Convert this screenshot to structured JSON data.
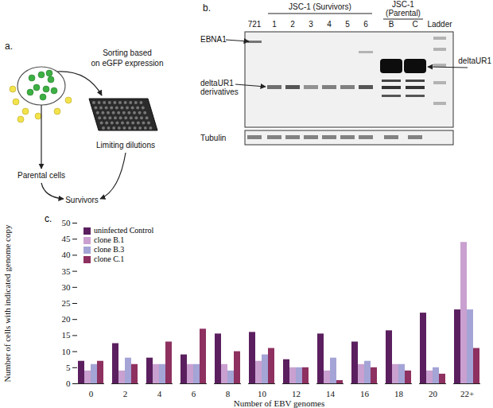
{
  "panel_a": {
    "label": "a.",
    "sorting": [
      "Sorting based",
      "on eGFP expression"
    ],
    "plate": "Limiting dilutions",
    "parental": "Parental cells",
    "survivors": "Survivors"
  },
  "panel_b": {
    "label": "b.",
    "lanes": {
      "reference": "721",
      "survivors_group": "JSC-1 (Survivors)",
      "survivors": [
        "1",
        "2",
        "3",
        "4",
        "5",
        "6"
      ],
      "parental_group": [
        "JSC-1",
        "(Parental)"
      ],
      "parental": [
        "B",
        "C"
      ],
      "ladder": "Ladder"
    },
    "bands": {
      "ebna1": "EBNA1",
      "derivatives": [
        "deltaUR1",
        "derivatives"
      ],
      "deltaur1": "deltaUR1",
      "tubulin": "Tubulin"
    }
  },
  "chart_data": {
    "type": "bar",
    "annotations": [
      "c."
    ],
    "x_label": "Number of EBV genomes",
    "y_label": "Number of cells with indicated genome copy",
    "categories": [
      "0",
      "2",
      "4",
      "6",
      "8",
      "10",
      "12",
      "14",
      "16",
      "18",
      "20",
      "22+"
    ],
    "series": [
      {
        "name": "uninfected Control",
        "color": "#5b1f5f",
        "values": [
          7,
          12.5,
          8,
          9,
          15.5,
          16,
          7.5,
          15.5,
          13,
          16.5,
          22,
          23
        ]
      },
      {
        "name": "clone B.1",
        "color": "#c9a0cf",
        "values": [
          4,
          4,
          6,
          6,
          6,
          7,
          5,
          4,
          6,
          6,
          4,
          44
        ]
      },
      {
        "name": "clone B.3",
        "color": "#a4a4d6",
        "values": [
          6,
          8,
          6,
          6,
          4,
          9,
          5,
          8,
          7,
          6,
          5,
          23
        ]
      },
      {
        "name": "clone C.1",
        "color": "#8e3060",
        "values": [
          7,
          6,
          13,
          17,
          10,
          11,
          5,
          1,
          5,
          4,
          3,
          11
        ]
      }
    ],
    "ylim": [
      0,
      50
    ],
    "yticks": [
      0,
      5,
      10,
      15,
      20,
      25,
      30,
      35,
      40,
      45,
      50
    ],
    "grid": false,
    "legend": "top-left"
  }
}
